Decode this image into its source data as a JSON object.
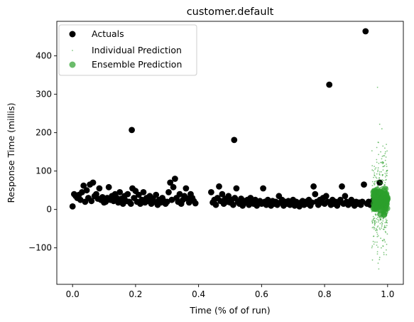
{
  "chart_data": {
    "type": "scatter",
    "title": "customer.default",
    "xlabel": "Time (% of of run)",
    "ylabel": "Response Time (millis)",
    "xlim": [
      -0.05,
      1.05
    ],
    "ylim": [
      -195,
      490
    ],
    "xticks": [
      0.0,
      0.2,
      0.4,
      0.6,
      0.8,
      1.0
    ],
    "xtick_labels": [
      "0.0",
      "0.2",
      "0.4",
      "0.6",
      "0.8",
      "1.0"
    ],
    "yticks": [
      -100,
      0,
      100,
      200,
      300,
      400
    ],
    "ytick_labels": [
      "−100",
      "0",
      "100",
      "200",
      "300",
      "400"
    ],
    "grid": false,
    "legend_position": "top-left",
    "series": [
      {
        "name": "Actuals",
        "color": "#000000",
        "marker": "large-circle",
        "points": [
          [
            0.0,
            8
          ],
          [
            0.005,
            40
          ],
          [
            0.01,
            35
          ],
          [
            0.015,
            30
          ],
          [
            0.02,
            38
          ],
          [
            0.025,
            25
          ],
          [
            0.03,
            45
          ],
          [
            0.035,
            62
          ],
          [
            0.04,
            20
          ],
          [
            0.045,
            50
          ],
          [
            0.05,
            30
          ],
          [
            0.055,
            65
          ],
          [
            0.06,
            22
          ],
          [
            0.065,
            70
          ],
          [
            0.07,
            35
          ],
          [
            0.075,
            40
          ],
          [
            0.08,
            28
          ],
          [
            0.085,
            55
          ],
          [
            0.09,
            25
          ],
          [
            0.095,
            32
          ],
          [
            0.1,
            18
          ],
          [
            0.105,
            20
          ],
          [
            0.11,
            30
          ],
          [
            0.115,
            58
          ],
          [
            0.12,
            25
          ],
          [
            0.125,
            35
          ],
          [
            0.13,
            22
          ],
          [
            0.135,
            40
          ],
          [
            0.14,
            30
          ],
          [
            0.145,
            18
          ],
          [
            0.15,
            45
          ],
          [
            0.155,
            28
          ],
          [
            0.16,
            15
          ],
          [
            0.165,
            35
          ],
          [
            0.17,
            22
          ],
          [
            0.175,
            40
          ],
          [
            0.18,
            20
          ],
          [
            0.185,
            15
          ],
          [
            0.188,
            207
          ],
          [
            0.19,
            55
          ],
          [
            0.195,
            30
          ],
          [
            0.2,
            48
          ],
          [
            0.205,
            20
          ],
          [
            0.21,
            38
          ],
          [
            0.215,
            15
          ],
          [
            0.22,
            25
          ],
          [
            0.225,
            45
          ],
          [
            0.23,
            18
          ],
          [
            0.235,
            30
          ],
          [
            0.24,
            22
          ],
          [
            0.245,
            35
          ],
          [
            0.25,
            15
          ],
          [
            0.255,
            28
          ],
          [
            0.26,
            20
          ],
          [
            0.265,
            38
          ],
          [
            0.27,
            12
          ],
          [
            0.275,
            25
          ],
          [
            0.28,
            18
          ],
          [
            0.285,
            30
          ],
          [
            0.29,
            22
          ],
          [
            0.295,
            15
          ],
          [
            0.3,
            20
          ],
          [
            0.305,
            45
          ],
          [
            0.31,
            70
          ],
          [
            0.315,
            25
          ],
          [
            0.32,
            58
          ],
          [
            0.325,
            80
          ],
          [
            0.33,
            30
          ],
          [
            0.335,
            20
          ],
          [
            0.34,
            40
          ],
          [
            0.345,
            15
          ],
          [
            0.35,
            25
          ],
          [
            0.355,
            35
          ],
          [
            0.36,
            55
          ],
          [
            0.365,
            28
          ],
          [
            0.37,
            18
          ],
          [
            0.375,
            40
          ],
          [
            0.38,
            30
          ],
          [
            0.385,
            22
          ],
          [
            0.39,
            16
          ],
          [
            0.44,
            45
          ],
          [
            0.445,
            18
          ],
          [
            0.45,
            25
          ],
          [
            0.455,
            12
          ],
          [
            0.46,
            30
          ],
          [
            0.465,
            60
          ],
          [
            0.47,
            22
          ],
          [
            0.475,
            40
          ],
          [
            0.48,
            15
          ],
          [
            0.485,
            28
          ],
          [
            0.49,
            20
          ],
          [
            0.495,
            35
          ],
          [
            0.5,
            18
          ],
          [
            0.505,
            25
          ],
          [
            0.51,
            12
          ],
          [
            0.513,
            181
          ],
          [
            0.515,
            30
          ],
          [
            0.52,
            55
          ],
          [
            0.525,
            20
          ],
          [
            0.53,
            15
          ],
          [
            0.535,
            28
          ],
          [
            0.54,
            10
          ],
          [
            0.545,
            22
          ],
          [
            0.55,
            18
          ],
          [
            0.555,
            25
          ],
          [
            0.56,
            12
          ],
          [
            0.565,
            30
          ],
          [
            0.57,
            20
          ],
          [
            0.575,
            15
          ],
          [
            0.58,
            25
          ],
          [
            0.585,
            10
          ],
          [
            0.59,
            18
          ],
          [
            0.595,
            22
          ],
          [
            0.6,
            15
          ],
          [
            0.605,
            55
          ],
          [
            0.61,
            20
          ],
          [
            0.615,
            12
          ],
          [
            0.62,
            25
          ],
          [
            0.625,
            18
          ],
          [
            0.63,
            10
          ],
          [
            0.635,
            22
          ],
          [
            0.64,
            15
          ],
          [
            0.645,
            20
          ],
          [
            0.65,
            12
          ],
          [
            0.655,
            35
          ],
          [
            0.66,
            18
          ],
          [
            0.665,
            25
          ],
          [
            0.67,
            10
          ],
          [
            0.675,
            20
          ],
          [
            0.68,
            15
          ],
          [
            0.685,
            22
          ],
          [
            0.69,
            12
          ],
          [
            0.695,
            18
          ],
          [
            0.7,
            25
          ],
          [
            0.705,
            10
          ],
          [
            0.71,
            20
          ],
          [
            0.715,
            15
          ],
          [
            0.72,
            8
          ],
          [
            0.725,
            18
          ],
          [
            0.73,
            22
          ],
          [
            0.735,
            12
          ],
          [
            0.74,
            20
          ],
          [
            0.745,
            15
          ],
          [
            0.75,
            25
          ],
          [
            0.755,
            10
          ],
          [
            0.76,
            18
          ],
          [
            0.765,
            60
          ],
          [
            0.77,
            40
          ],
          [
            0.775,
            20
          ],
          [
            0.78,
            12
          ],
          [
            0.785,
            25
          ],
          [
            0.79,
            18
          ],
          [
            0.795,
            30
          ],
          [
            0.8,
            15
          ],
          [
            0.805,
            35
          ],
          [
            0.81,
            20
          ],
          [
            0.815,
            325
          ],
          [
            0.82,
            12
          ],
          [
            0.825,
            25
          ],
          [
            0.83,
            15
          ],
          [
            0.835,
            20
          ],
          [
            0.84,
            10
          ],
          [
            0.845,
            18
          ],
          [
            0.85,
            25
          ],
          [
            0.855,
            60
          ],
          [
            0.86,
            15
          ],
          [
            0.865,
            35
          ],
          [
            0.87,
            20
          ],
          [
            0.875,
            12
          ],
          [
            0.88,
            18
          ],
          [
            0.885,
            25
          ],
          [
            0.89,
            15
          ],
          [
            0.895,
            10
          ],
          [
            0.9,
            20
          ],
          [
            0.905,
            15
          ],
          [
            0.91,
            18
          ],
          [
            0.915,
            12
          ],
          [
            0.92,
            20
          ],
          [
            0.925,
            65
          ],
          [
            0.93,
            464
          ],
          [
            0.935,
            15
          ],
          [
            0.94,
            20
          ],
          [
            0.945,
            12
          ],
          [
            0.95,
            18
          ],
          [
            0.955,
            25
          ],
          [
            0.96,
            15
          ],
          [
            0.965,
            45
          ],
          [
            0.97,
            20
          ],
          [
            0.975,
            70
          ],
          [
            0.98,
            30
          ],
          [
            0.985,
            15
          ],
          [
            0.99,
            20
          ],
          [
            0.995,
            25
          ]
        ]
      },
      {
        "name": "Individual Prediction",
        "color": "#2ca02c",
        "marker": "tiny-dot",
        "x_range": [
          0.95,
          1.0
        ],
        "points": [
          [
            0.968,
            318
          ],
          [
            0.975,
            222
          ],
          [
            0.982,
            210
          ],
          [
            0.97,
            175
          ],
          [
            0.985,
            165
          ],
          [
            0.978,
            150
          ],
          [
            0.99,
            140
          ],
          [
            0.965,
            130
          ],
          [
            0.972,
            120
          ],
          [
            0.988,
            112
          ],
          [
            0.96,
            105
          ],
          [
            0.98,
            98
          ],
          [
            0.975,
            -125
          ],
          [
            0.97,
            -140
          ],
          [
            0.972,
            -155
          ],
          [
            0.968,
            -110
          ],
          [
            0.985,
            -95
          ],
          [
            0.96,
            -85
          ],
          [
            0.99,
            -80
          ],
          [
            0.978,
            -75
          ],
          [
            0.955,
            -70
          ],
          [
            0.98,
            -100
          ],
          [
            0.994,
            -60
          ],
          [
            0.962,
            -55
          ]
        ],
        "band": {
          "count": 340,
          "center": 20,
          "spread": 55
        }
      },
      {
        "name": "Ensemble Prediction",
        "color": "#2ca02c",
        "marker": "large-circle",
        "x_range": [
          0.955,
          1.0
        ],
        "band": {
          "count": 140,
          "center": 22,
          "spread": 14
        }
      }
    ]
  }
}
